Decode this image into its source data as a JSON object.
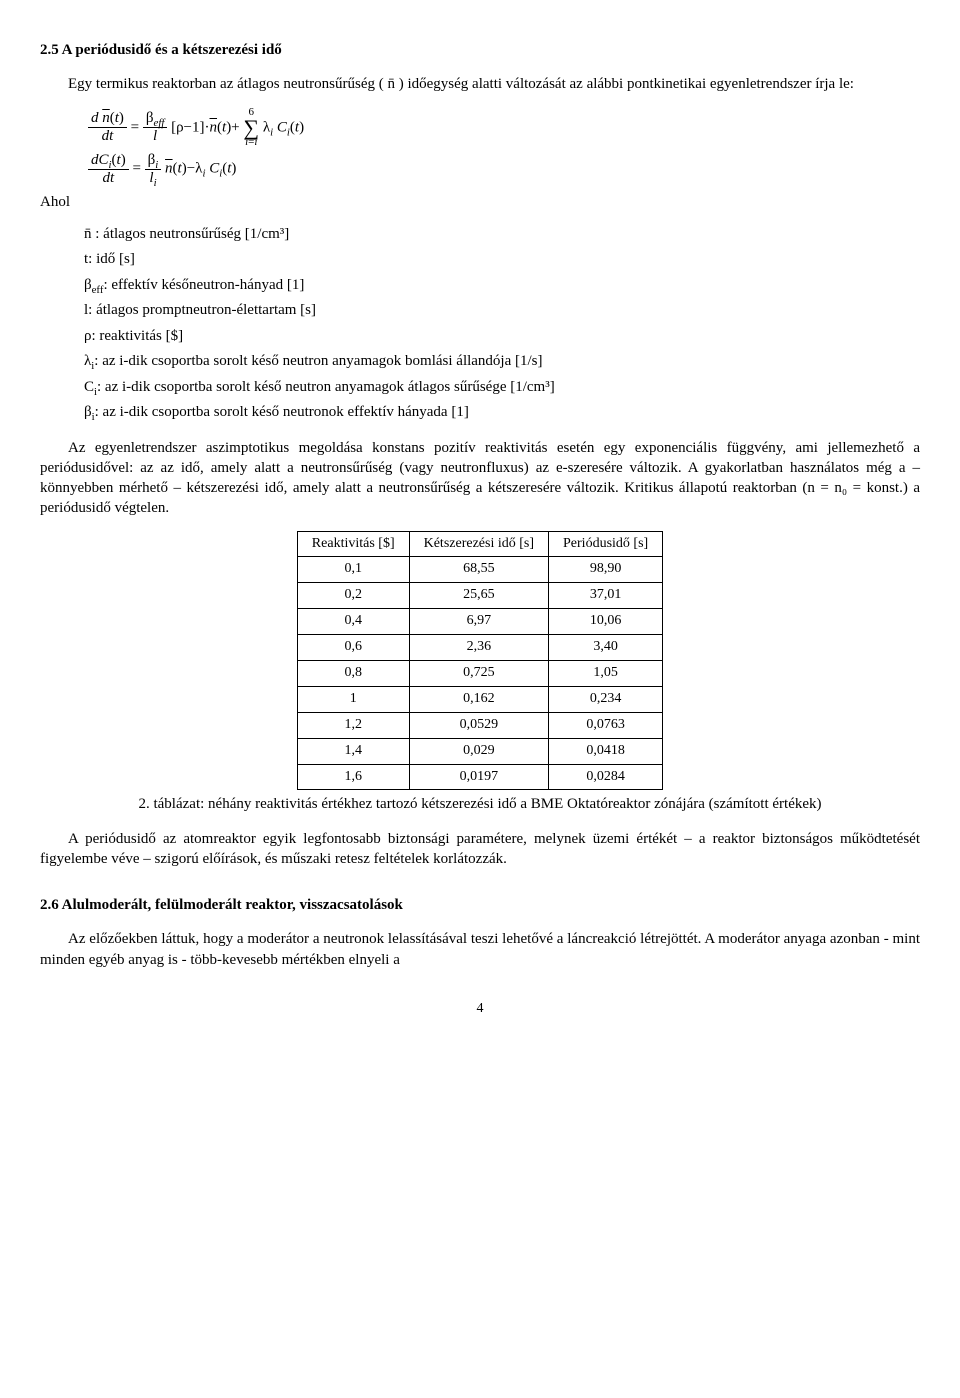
{
  "sec1": {
    "heading": "2.5 A periódusidő és a kétszerezési idő",
    "intro": "Egy termikus reaktorban az átlagos neutronsűrűség ( n̄ ) időegység alatti változását az alábbi pontkinetikai egyenletrendszer írja le:",
    "ahol": "Ahol",
    "defs": {
      "d1": "n̄ : átlagos neutronsűrűség [1/cm³]",
      "d2": "t: idő [s]",
      "d3_a": "β",
      "d3_b": ": effektív későneutron-hányad [1]",
      "d4": "l: átlagos promptneutron-élettartam [s]",
      "d5": "ρ: reaktivitás [$]",
      "d6_a": "λ",
      "d6_b": ": az i-dik csoportba sorolt késő neutron anyamagok bomlási állandója [1/s]",
      "d7_a": "C",
      "d7_b": ": az i-dik csoportba sorolt késő neutron anyamagok átlagos sűrűsége [1/cm³]",
      "d8_a": "β",
      "d8_b": ": az i-dik csoportba sorolt késő neutronok effektív hányada [1]"
    },
    "para1": "Az egyenletrendszer aszimptotikus megoldása konstans pozitív reaktivitás esetén egy exponenciális függvény, ami jellemezhető a periódusidővel: az az idő, amely alatt a neutronsűrűség (vagy neutronfluxus) az e-szeresére változik. A gyakorlatban használatos még a – könnyebben mérhető – kétszerezési idő, amely alatt a neutronsűrűség a kétszeresére változik. Kritikus állapotú reaktorban (n = n₀ = konst.) a periódusidő végtelen.",
    "table": {
      "headers": [
        "Reaktivitás [$]",
        "Kétszerezési idő [s]",
        "Periódusidő [s]"
      ],
      "rows": [
        [
          "0,1",
          "68,55",
          "98,90"
        ],
        [
          "0,2",
          "25,65",
          "37,01"
        ],
        [
          "0,4",
          "6,97",
          "10,06"
        ],
        [
          "0,6",
          "2,36",
          "3,40"
        ],
        [
          "0,8",
          "0,725",
          "1,05"
        ],
        [
          "1",
          "0,162",
          "0,234"
        ],
        [
          "1,2",
          "0,0529",
          "0,0763"
        ],
        [
          "1,4",
          "0,029",
          "0,0418"
        ],
        [
          "1,6",
          "0,0197",
          "0,0284"
        ]
      ]
    },
    "caption": "2. táblázat: néhány reaktivitás értékhez tartozó kétszerezési idő a BME Oktatóreaktor zónájára (számított értékek)",
    "para2": "A periódusidő az atomreaktor egyik legfontosabb biztonsági paramétere, melynek üzemi értékét – a reaktor biztonságos működtetését figyelembe véve – szigorú előírások, és műszaki retesz feltételek korlátozzák."
  },
  "sec2": {
    "heading": "2.6 Alulmoderált, felülmoderált reaktor, visszacsatolások",
    "para": "Az előzőekben láttuk, hogy a moderátor a neutronok lelassításával teszi lehetővé a láncreakció létrejöttét. A moderátor anyaga azonban - mint minden egyéb anyag is - több-kevesebb mértékben elnyeli a"
  },
  "page_number": "4"
}
